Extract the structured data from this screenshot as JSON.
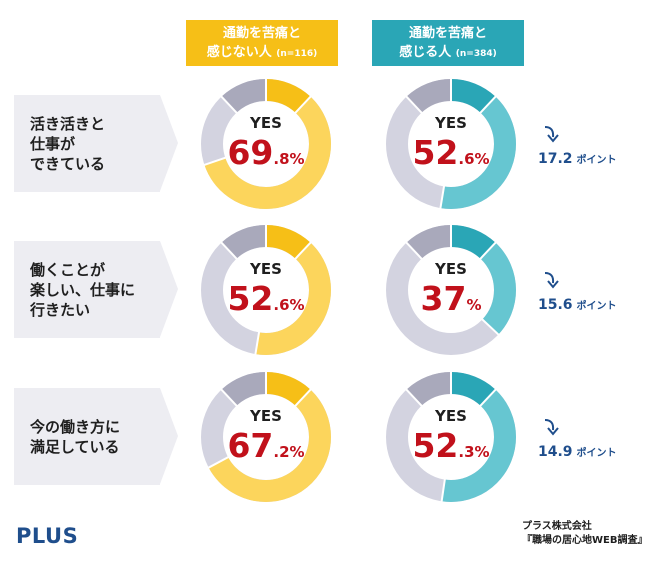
{
  "headers": {
    "a": {
      "line1": "通勤を苦痛と",
      "line2": "感じない人",
      "n": "(n=116)"
    },
    "b": {
      "line1": "通勤を苦痛と",
      "line2": "感じる人",
      "n": "(n=384)"
    }
  },
  "yes_label": "YES",
  "points_unit": "ポイント",
  "colors": {
    "group_a_yes": "#fcd55c",
    "group_a_accent": "#f6bf17",
    "group_b_yes": "#66c6d1",
    "group_b_accent": "#2aa6b6",
    "neutral_light": "#d3d3e0",
    "neutral_dark": "#a9a9bb",
    "percent_text": "#c1111b",
    "points_text": "#1f4e8c"
  },
  "chart_data": {
    "type": "pie",
    "groups": [
      "通勤を苦痛と感じない人 (n=116)",
      "通勤を苦痛と感じる人 (n=384)"
    ],
    "rows": [
      {
        "label": "活き活きと\n仕事が\nできている",
        "values": [
          69.8,
          52.6
        ],
        "pct_big": [
          "69",
          "52"
        ],
        "pct_small": [
          ".8%",
          ".6%"
        ],
        "diff": "17.2"
      },
      {
        "label": "働くことが\n楽しい、仕事に\n行きたい",
        "values": [
          52.6,
          37
        ],
        "pct_big": [
          "52",
          "37"
        ],
        "pct_small": [
          ".6%",
          "%"
        ],
        "diff": "15.6"
      },
      {
        "label": "今の働き方に\n満足している",
        "values": [
          67.2,
          52.3
        ],
        "pct_big": [
          "67",
          "52"
        ],
        "pct_small": [
          ".2%",
          ".3%"
        ],
        "diff": "14.9"
      }
    ]
  },
  "footer": {
    "logo": "PLUS",
    "source_line1": "プラス株式会社",
    "source_line2": "『職場の居心地WEB調査』"
  }
}
